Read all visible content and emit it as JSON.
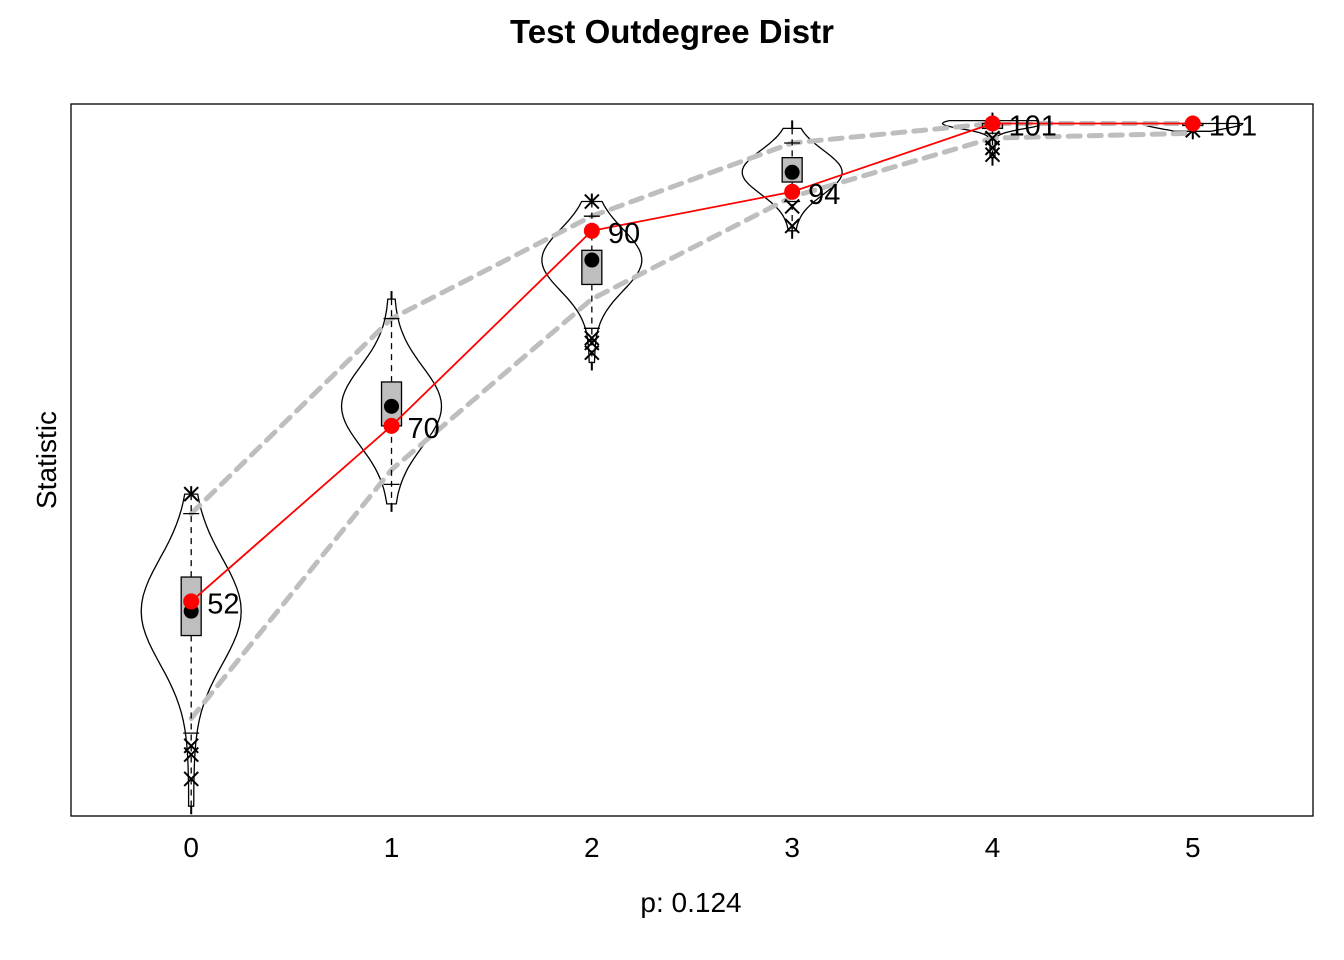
{
  "chart_data": {
    "type": "violin",
    "title": "Test Outdegree Distr",
    "xlabel": "p: 0.124",
    "ylabel": "Statistic",
    "x": [
      0,
      1,
      2,
      3,
      4,
      5
    ],
    "x_tick_labels": [
      "0",
      "1",
      "2",
      "3",
      "4",
      "5"
    ],
    "xlim": [
      -0.6,
      5.6
    ],
    "ylim": [
      30,
      103
    ],
    "y_axis_ticks_shown": false,
    "grid": false,
    "observed": {
      "values": [
        52,
        70,
        90,
        94,
        101,
        101
      ],
      "labels": [
        "52",
        "70",
        "90",
        "94",
        "101",
        "101"
      ],
      "color": "#ff0000"
    },
    "simulated": [
      {
        "x": 0,
        "mean": 51,
        "q1": 48.5,
        "median": 51,
        "q3": 54.5,
        "whisker_low": 38.5,
        "whisker_high": 61,
        "min": 31,
        "max": 63,
        "outliers": [
          33.8,
          36.3,
          37.2,
          63
        ]
      },
      {
        "x": 1,
        "mean": 72,
        "q1": 70,
        "median": 72,
        "q3": 74.5,
        "whisker_low": 64,
        "whisker_high": 81,
        "min": 62,
        "max": 83,
        "outliers": []
      },
      {
        "x": 2,
        "mean": 87,
        "q1": 84.5,
        "median": 87,
        "q3": 88,
        "whisker_low": 80,
        "whisker_high": 91.5,
        "min": 76.5,
        "max": 93,
        "outliers": [
          77.5,
          78.5,
          79,
          93
        ]
      },
      {
        "x": 3,
        "mean": 96,
        "q1": 95,
        "median": 96,
        "q3": 97.5,
        "whisker_low": 93,
        "whisker_high": 99,
        "min": 90,
        "max": 100.5,
        "outliers": [
          90.5,
          92.5
        ]
      },
      {
        "x": 4,
        "mean": 101,
        "q1": 100.5,
        "median": 101,
        "q3": 101,
        "whisker_low": 100,
        "whisker_high": 101,
        "min": 97.5,
        "max": 101.3,
        "outliers": [
          97.8,
          98.5,
          99.5
        ]
      },
      {
        "x": 5,
        "mean": 101,
        "q1": 101,
        "median": 101,
        "q3": 101,
        "whisker_low": 101,
        "whisker_high": 101,
        "min": 100.2,
        "max": 101,
        "outliers": [
          100.3
        ]
      }
    ],
    "band_upper": [
      61,
      81,
      91.5,
      99,
      101,
      101
    ],
    "band_lower": [
      40,
      65.5,
      83,
      93.5,
      99.5,
      100
    ],
    "colors": {
      "observed": "#ff0000",
      "box_fill": "#bebebe",
      "band": "#bebebe",
      "mean_point": "#000000"
    }
  }
}
